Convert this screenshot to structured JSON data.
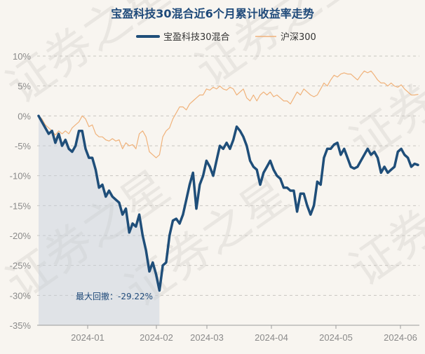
{
  "chart_data": {
    "type": "line",
    "title": "宝盈科技30混合近6个月累计收益率走势",
    "ylim": [
      -35,
      10
    ],
    "y_ticks": [
      10,
      5,
      0,
      -5,
      -10,
      -15,
      -20,
      -25,
      -30,
      -35
    ],
    "y_tick_labels": [
      "10%",
      "5%",
      "0%",
      "-5%",
      "-10%",
      "-15%",
      "-20%",
      "-25%",
      "-30%",
      "-35%"
    ],
    "x_ticks": [
      "2024-01",
      "2024-02",
      "2024-03",
      "2024-04",
      "2024-05",
      "2024-06"
    ],
    "grid": "horizontal dashed",
    "legend": "top",
    "series": [
      {
        "name": "宝盈科技30混合",
        "color": "#1f4e79",
        "values": [
          0,
          -1,
          -2,
          -3,
          -2.5,
          -4.5,
          -3,
          -5,
          -4,
          -5.5,
          -6,
          -5,
          -2.5,
          -2.5,
          -5.5,
          -7,
          -7,
          -9,
          -12,
          -11.5,
          -13.5,
          -12.5,
          -13.5,
          -14,
          -14.5,
          -16.5,
          -15.5,
          -19.5,
          -18,
          -18.5,
          -16.5,
          -20,
          -22.5,
          -26,
          -24.5,
          -26.5,
          -29.2,
          -25,
          -24.5,
          -20,
          -17.5,
          -17.2,
          -18,
          -16.5,
          -14,
          -11.5,
          -9.5,
          -15.5,
          -11.5,
          -10,
          -7.5,
          -8.5,
          -10,
          -7.5,
          -5,
          -5.5,
          -4.5,
          -5.5,
          -4,
          -1.8,
          -2.5,
          -3.5,
          -5,
          -7.5,
          -8.5,
          -9,
          -11.5,
          -9.5,
          -8.5,
          -7.5,
          -9,
          -10,
          -10.5,
          -12,
          -12,
          -12.5,
          -12.5,
          -16,
          -13,
          -13,
          -15,
          -16.5,
          -15,
          -11,
          -11.5,
          -7,
          -5.5,
          -5.5,
          -4.8,
          -4.5,
          -6.5,
          -5.5,
          -7,
          -8.5,
          -8.8,
          -8.5,
          -7.5,
          -6.5,
          -5.5,
          -6.5,
          -6,
          -7,
          -9.5,
          -8.5,
          -9.5,
          -9,
          -8.5,
          -6,
          -5.5,
          -6.5,
          -7,
          -8.5,
          -8,
          -8.2
        ]
      },
      {
        "name": "沪深300",
        "color": "#f0b27a",
        "values": [
          0,
          -0.5,
          -1.5,
          -2,
          -2.5,
          -3.2,
          -2.5,
          -3,
          -2.5,
          -3,
          -2,
          -1.5,
          -1,
          0,
          -0.5,
          -1.8,
          -1.5,
          -3,
          -3.5,
          -3.5,
          -4,
          -4.2,
          -3.8,
          -4.2,
          -4,
          -5.5,
          -4.5,
          -5,
          -4.8,
          -5.5,
          -3,
          -2.5,
          -3.5,
          -6,
          -6.5,
          -7,
          -6.5,
          -3.5,
          -2.5,
          -2,
          -0.5,
          0.5,
          1.5,
          1.5,
          1,
          2,
          2.5,
          3,
          3.5,
          3.5,
          4.5,
          4.3,
          4.8,
          4.5,
          5,
          4.5,
          4.3,
          4.8,
          4.5,
          3.5,
          4,
          4.5,
          3,
          2.5,
          3.5,
          2.5,
          3.5,
          4,
          3.5,
          4,
          3.2,
          3.5,
          3,
          2.5,
          2.5,
          2,
          3,
          4,
          3.5,
          4.5,
          4,
          3.5,
          3.2,
          3.5,
          4.5,
          5.5,
          5,
          6,
          6.8,
          6.5,
          7,
          7.2,
          7,
          7,
          6.5,
          6,
          6.8,
          7.5,
          7.2,
          7.5,
          6.8,
          6,
          5.5,
          5.5,
          5,
          5.5,
          5,
          4.8,
          5.2,
          4.5,
          4,
          3.5,
          3.5,
          3.6
        ]
      }
    ],
    "annotation": {
      "label": "最大回撤：",
      "value": "-29.22%"
    }
  },
  "watermark": "证券之星"
}
